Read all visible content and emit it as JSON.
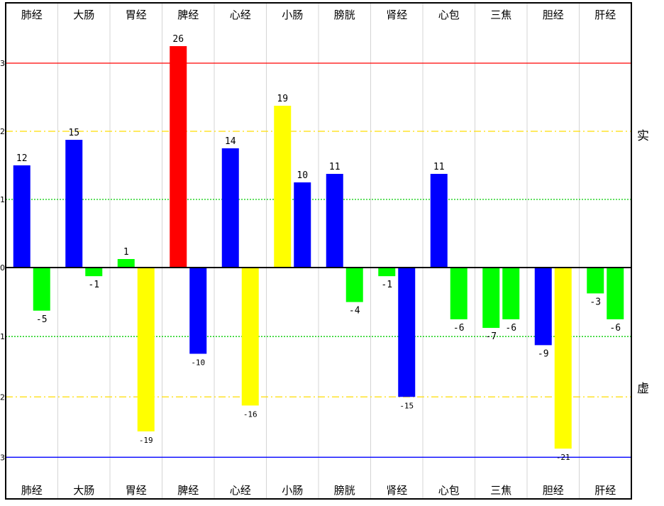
{
  "chart_data": {
    "type": "bar",
    "categories": [
      "肺经",
      "大肠",
      "胃经",
      "脾经",
      "心经",
      "小肠",
      "膀胱",
      "肾经",
      "心包",
      "三焦",
      "胆经",
      "肝经"
    ],
    "bars": [
      [
        {
          "v": 12,
          "color": "#0000ff"
        },
        {
          "v": -5,
          "color": "#00ff00"
        }
      ],
      [
        {
          "v": 15,
          "color": "#0000ff"
        },
        {
          "v": -1,
          "color": "#00ff00"
        }
      ],
      [
        {
          "v": 1,
          "color": "#00ff00"
        },
        {
          "v": -19,
          "color": "#ffff00"
        }
      ],
      [
        {
          "v": 26,
          "color": "#ff0000"
        },
        {
          "v": -10,
          "color": "#0000ff"
        }
      ],
      [
        {
          "v": 14,
          "color": "#0000ff"
        },
        {
          "v": -16,
          "color": "#ffff00"
        }
      ],
      [
        {
          "v": 19,
          "color": "#ffff00"
        },
        {
          "v": 10,
          "color": "#0000ff"
        }
      ],
      [
        {
          "v": 11,
          "color": "#0000ff"
        },
        {
          "v": -4,
          "color": "#00ff00"
        }
      ],
      [
        {
          "v": -1,
          "color": "#00ff00"
        },
        {
          "v": -15,
          "color": "#0000ff"
        }
      ],
      [
        {
          "v": 11,
          "color": "#0000ff"
        },
        {
          "v": -6,
          "color": "#00ff00"
        }
      ],
      [
        {
          "v": -7,
          "color": "#00ff00"
        },
        {
          "v": -6,
          "color": "#00ff00"
        }
      ],
      [
        {
          "v": -9,
          "color": "#0000ff"
        },
        {
          "v": -21,
          "color": "#ffff00"
        }
      ],
      [
        {
          "v": -3,
          "color": "#00ff00"
        },
        {
          "v": -6,
          "color": "#00ff00"
        }
      ]
    ],
    "upper_label": "实",
    "lower_label": "虚",
    "y_tick_labels": [
      "3",
      "2",
      "1",
      "0",
      "1",
      "2",
      "3"
    ],
    "reference_lines": [
      {
        "v": 24,
        "color": "#ff0000",
        "style": "solid"
      },
      {
        "v": 16,
        "color": "#ffdd00",
        "style": "dashdot"
      },
      {
        "v": 8,
        "color": "#00cc00",
        "style": "dotted"
      },
      {
        "v": -8,
        "color": "#00cc00",
        "style": "dotted"
      },
      {
        "v": -15,
        "color": "#ffdd00",
        "style": "dashdot"
      },
      {
        "v": -22,
        "color": "#0000ff",
        "style": "solid"
      }
    ],
    "ylim": [
      -25,
      30
    ],
    "grid": true
  }
}
